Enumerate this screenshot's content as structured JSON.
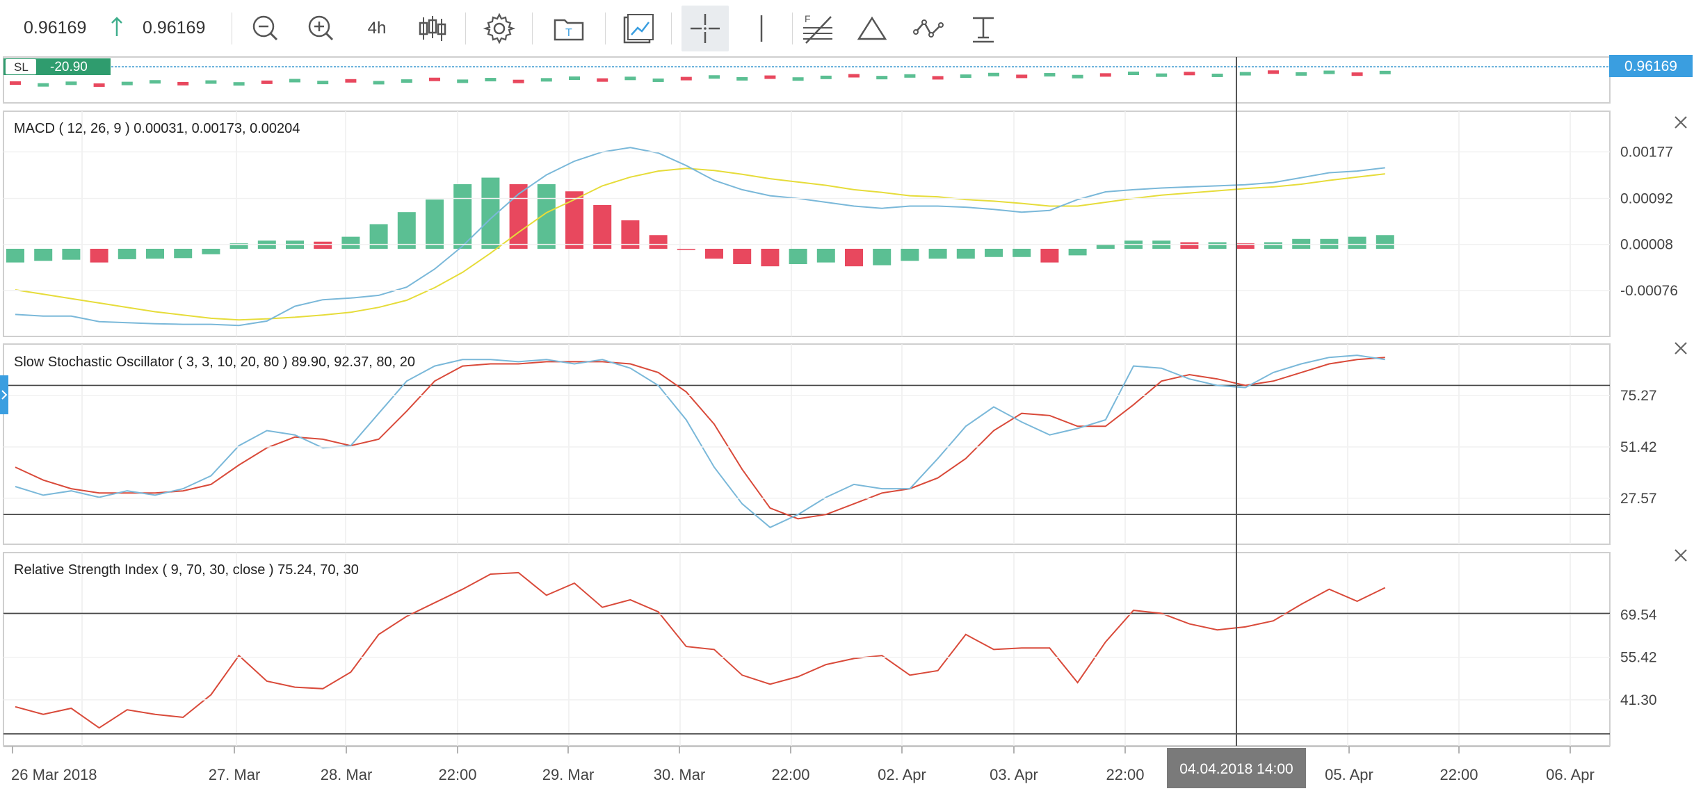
{
  "toolbar": {
    "bid": "0.96169",
    "ask": "0.96169",
    "timeframe": "4h",
    "colors": {
      "arrow_up": "#3fae8c"
    }
  },
  "overlay": {
    "sl_label": "SL",
    "sl_value": "-20.90",
    "price_badge": "0.96169",
    "crosshair_time": "04.04.2018 14:00"
  },
  "panels": {
    "macd": {
      "title": "MACD ( 12, 26, 9 ) 0.00031, 0.00173, 0.00204",
      "close_icon": "close-icon"
    },
    "stoch": {
      "title": "Slow Stochastic Oscillator ( 3, 3, 10, 20, 80 ) 89.90, 92.37, 80, 20",
      "close_icon": "close-icon"
    },
    "rsi": {
      "title": "Relative Strength Index ( 9, 70, 30, close ) 75.24, 70, 30",
      "close_icon": "close-icon"
    }
  },
  "colors": {
    "up": "#5bbf93",
    "down": "#e8485e",
    "macd_line": "#7ab8d9",
    "signal_line": "#e6dc3a",
    "k_line": "#7ab8d9",
    "d_line": "#d94a3a",
    "rsi_line": "#d94a3a",
    "badge": "#3a9ee0",
    "sl_badge": "#2f9c6e"
  },
  "chart_data": [
    {
      "type": "bar",
      "name": "MACD",
      "ticks": [
        "0.00177",
        "0.00092",
        "0.00008",
        "-0.00076"
      ],
      "ylim": [
        -0.00155,
        0.00245
      ],
      "histogram": [
        -0.00025,
        -0.00022,
        -0.0002,
        -0.00025,
        -0.00019,
        -0.00018,
        -0.00017,
        -0.0001,
        0.0001,
        0.00015,
        0.00015,
        0.00013,
        0.00022,
        0.00045,
        0.00067,
        0.0009,
        0.00118,
        0.0013,
        0.00118,
        0.00118,
        0.00105,
        0.0008,
        0.00052,
        0.00025,
        -2e-05,
        -0.00018,
        -0.00028,
        -0.00032,
        -0.00028,
        -0.00025,
        -0.00032,
        -0.0003,
        -0.00022,
        -0.00018,
        -0.00018,
        -0.00015,
        -0.00015,
        -0.00025,
        -0.00012,
        8e-05,
        0.00015,
        0.00015,
        0.00012,
        0.00012,
        0.0001,
        0.00012,
        0.00018,
        0.00018,
        0.00022,
        0.00025
      ],
      "macd": [
        -0.0012,
        -0.00123,
        -0.00123,
        -0.00133,
        -0.00135,
        -0.00137,
        -0.00138,
        -0.00138,
        -0.0014,
        -0.00132,
        -0.00105,
        -0.00093,
        -0.0009,
        -0.00085,
        -0.0007,
        -0.00037,
        5e-05,
        0.00055,
        0.001,
        0.00135,
        0.0016,
        0.00177,
        0.00185,
        0.00175,
        0.00152,
        0.00125,
        0.00108,
        0.00097,
        0.00092,
        0.00085,
        0.00078,
        0.00074,
        0.00078,
        0.00078,
        0.00076,
        0.00072,
        0.00067,
        0.0007,
        0.0009,
        0.00104,
        0.00108,
        0.00111,
        0.00113,
        0.00115,
        0.00117,
        0.00121,
        0.0013,
        0.00139,
        0.00142,
        0.00148
      ],
      "signal": [
        -0.00075,
        -0.00083,
        -0.00091,
        -0.00099,
        -0.00107,
        -0.00115,
        -0.00121,
        -0.00127,
        -0.0013,
        -0.00128,
        -0.00125,
        -0.00121,
        -0.00116,
        -0.00107,
        -0.00094,
        -0.00071,
        -0.00043,
        -8e-05,
        0.0003,
        0.00066,
        0.0009,
        0.00115,
        0.00131,
        0.00142,
        0.00147,
        0.00143,
        0.00136,
        0.00128,
        0.00122,
        0.00116,
        0.00108,
        0.00103,
        0.00097,
        0.00095,
        0.0009,
        0.00087,
        0.00083,
        0.00078,
        0.00078,
        0.00085,
        0.00092,
        0.00098,
        0.00102,
        0.00106,
        0.0011,
        0.00113,
        0.00118,
        0.00125,
        0.00131,
        0.00137
      ]
    },
    {
      "type": "line",
      "name": "Slow Stochastic Oscillator",
      "ticks": [
        "75.27",
        "51.42",
        "27.57"
      ],
      "levels": [
        80,
        20
      ],
      "ylim": [
        7.8,
        97.6
      ],
      "k": [
        33,
        29,
        31,
        28,
        31,
        29,
        32,
        38,
        52,
        59,
        57,
        51,
        52,
        67,
        82,
        89,
        92,
        92,
        91,
        92,
        90,
        92,
        88,
        80,
        64,
        42,
        25,
        14,
        20,
        28,
        34,
        32,
        32,
        46,
        61,
        70,
        63,
        57,
        60,
        64,
        89,
        88,
        83,
        80,
        79,
        86,
        90,
        93,
        94,
        92
      ],
      "d": [
        42,
        36,
        32,
        30,
        30,
        30,
        31,
        34,
        43,
        51,
        56,
        55,
        52,
        55,
        68,
        82,
        89,
        90,
        90,
        91,
        91,
        91,
        90,
        86,
        77,
        62,
        41,
        23,
        18,
        20,
        25,
        30,
        32,
        37,
        46,
        59,
        67,
        66,
        61,
        61,
        71,
        82,
        85,
        83,
        80,
        82,
        86,
        90,
        92,
        93
      ]
    },
    {
      "type": "line",
      "name": "Relative Strength Index",
      "ticks": [
        "69.54",
        "55.42",
        "41.30"
      ],
      "levels": [
        70,
        30
      ],
      "ylim": [
        27.2,
        89.0
      ],
      "rsi": [
        39,
        36.5,
        38.5,
        32,
        38,
        36.5,
        35.5,
        43,
        56,
        47.5,
        45.5,
        45,
        50.5,
        63,
        69,
        73.5,
        78,
        83,
        83.5,
        76,
        80,
        72,
        74.5,
        70.5,
        59,
        58,
        49.5,
        46.5,
        49,
        53,
        55,
        56,
        49.5,
        51,
        63,
        58,
        58.5,
        58.5,
        47,
        60.5,
        71,
        70,
        66.5,
        64.5,
        65.5,
        67.5,
        73,
        78,
        74,
        78.5
      ]
    }
  ],
  "x_axis": {
    "labels": [
      "26 Mar 2018",
      "27. Mar",
      "28. Mar",
      "22:00",
      "29. Mar",
      "30. Mar",
      "22:00",
      "02. Apr",
      "03. Apr",
      "22:00",
      "05. Apr",
      "22:00",
      "06. Apr"
    ]
  }
}
